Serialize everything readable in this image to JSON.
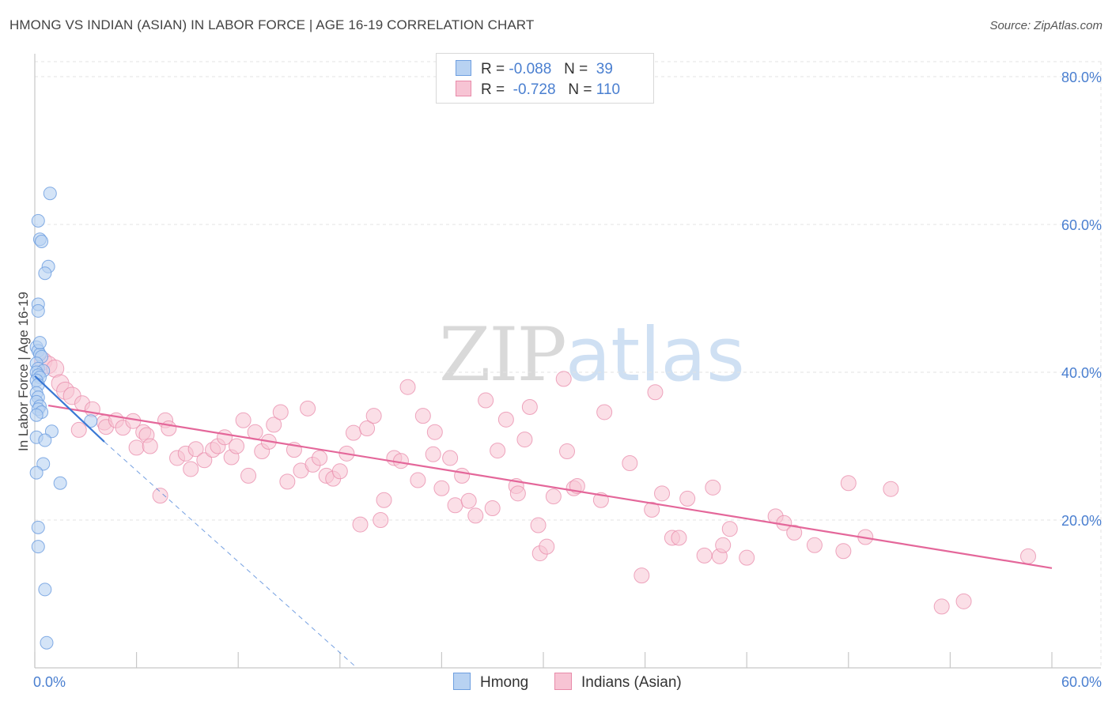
{
  "header": {
    "title": "HMONG VS INDIAN (ASIAN) IN LABOR FORCE | AGE 16-19 CORRELATION CHART",
    "source": "Source: ZipAtlas.com"
  },
  "watermark": {
    "zip": "ZIP",
    "atlas": "atlas"
  },
  "legend": {
    "hmong": {
      "r_label": "R =",
      "r_value": "-0.088",
      "n_label": "N =",
      "n_value": "39"
    },
    "indian": {
      "r_label": "R =",
      "r_value": "-0.728",
      "n_label": "N =",
      "n_value": "110"
    }
  },
  "colors": {
    "hmong_fill": "#b8d2f2",
    "hmong_stroke": "#6e9fe0",
    "hmong_line": "#3a78d4",
    "indian_fill": "#f7c4d4",
    "indian_stroke": "#e88aa9",
    "indian_line": "#e4679a",
    "axis_text": "#4a7fd0",
    "grid": "#e3e3e3"
  },
  "chart_data": {
    "type": "scatter",
    "title": "HMONG VS INDIAN (ASIAN) IN LABOR FORCE | AGE 16-19 CORRELATION CHART",
    "xlabel": "",
    "ylabel": "In Labor Force | Age 16-19",
    "xlim": [
      0,
      60
    ],
    "ylim": [
      0,
      80
    ],
    "x_tick_labels": [
      "0.0%",
      "60.0%"
    ],
    "y_ticks": [
      20,
      40,
      60,
      80
    ],
    "y_tick_labels": [
      "20.0%",
      "40.0%",
      "60.0%",
      "80.0%"
    ],
    "grid": true,
    "series": [
      {
        "name": "Hmong",
        "r": -0.088,
        "n": 39,
        "points": [
          [
            0.9,
            64.2
          ],
          [
            0.2,
            60.5
          ],
          [
            0.3,
            58.0
          ],
          [
            0.4,
            57.7
          ],
          [
            0.8,
            54.3
          ],
          [
            0.6,
            53.4
          ],
          [
            0.2,
            49.2
          ],
          [
            0.2,
            48.3
          ],
          [
            0.1,
            43.4
          ],
          [
            0.2,
            42.9
          ],
          [
            0.3,
            42.4
          ],
          [
            0.4,
            42.1
          ],
          [
            0.1,
            41.2
          ],
          [
            0.2,
            40.5
          ],
          [
            0.5,
            40.2
          ],
          [
            0.1,
            40.0
          ],
          [
            0.2,
            39.6
          ],
          [
            0.3,
            39.3
          ],
          [
            0.1,
            38.9
          ],
          [
            0.2,
            38.3
          ],
          [
            0.1,
            37.2
          ],
          [
            0.2,
            36.6
          ],
          [
            0.1,
            36.0
          ],
          [
            0.3,
            35.4
          ],
          [
            0.2,
            35.0
          ],
          [
            0.4,
            34.6
          ],
          [
            0.1,
            34.2
          ],
          [
            3.3,
            33.4
          ],
          [
            1.0,
            32.0
          ],
          [
            0.1,
            31.2
          ],
          [
            0.6,
            30.8
          ],
          [
            0.5,
            27.6
          ],
          [
            0.1,
            26.4
          ],
          [
            1.5,
            25.0
          ],
          [
            0.2,
            19.0
          ],
          [
            0.2,
            16.4
          ],
          [
            0.6,
            10.6
          ],
          [
            0.7,
            3.4
          ],
          [
            0.3,
            44.0
          ]
        ],
        "trend": {
          "x": [
            0,
            4.1
          ],
          "y": [
            39.5,
            30.6
          ]
        },
        "trend_extended": {
          "x": [
            4.1,
            19.0
          ],
          "y": [
            30.6,
            0
          ]
        }
      },
      {
        "name": "Indians (Asian)",
        "r": -0.728,
        "n": 110,
        "points": [
          [
            0.5,
            41.5
          ],
          [
            0.8,
            41.0
          ],
          [
            1.2,
            40.5
          ],
          [
            1.5,
            38.5
          ],
          [
            1.8,
            37.5
          ],
          [
            2.2,
            36.8
          ],
          [
            2.8,
            35.8
          ],
          [
            3.4,
            35.0
          ],
          [
            4.1,
            33.2
          ],
          [
            2.6,
            32.2
          ],
          [
            4.2,
            32.6
          ],
          [
            4.8,
            33.5
          ],
          [
            5.2,
            32.5
          ],
          [
            5.8,
            33.4
          ],
          [
            6.4,
            31.9
          ],
          [
            6.6,
            31.5
          ],
          [
            6.0,
            29.8
          ],
          [
            6.8,
            30.0
          ],
          [
            7.4,
            23.3
          ],
          [
            7.7,
            33.5
          ],
          [
            7.9,
            32.4
          ],
          [
            8.4,
            28.4
          ],
          [
            8.9,
            29.0
          ],
          [
            9.2,
            26.9
          ],
          [
            9.5,
            29.6
          ],
          [
            10.0,
            28.1
          ],
          [
            10.5,
            29.5
          ],
          [
            10.8,
            30.0
          ],
          [
            11.2,
            31.2
          ],
          [
            11.6,
            28.5
          ],
          [
            11.9,
            30.0
          ],
          [
            12.3,
            33.5
          ],
          [
            12.6,
            26.0
          ],
          [
            13.0,
            31.9
          ],
          [
            13.4,
            29.3
          ],
          [
            13.8,
            30.6
          ],
          [
            14.1,
            32.9
          ],
          [
            14.5,
            34.6
          ],
          [
            14.9,
            25.2
          ],
          [
            15.3,
            29.5
          ],
          [
            15.7,
            26.7
          ],
          [
            16.1,
            35.1
          ],
          [
            16.4,
            27.5
          ],
          [
            16.8,
            28.4
          ],
          [
            17.2,
            26.0
          ],
          [
            17.6,
            25.6
          ],
          [
            18.0,
            26.6
          ],
          [
            18.4,
            29.0
          ],
          [
            18.8,
            31.8
          ],
          [
            19.2,
            19.4
          ],
          [
            19.6,
            32.4
          ],
          [
            20.0,
            34.1
          ],
          [
            20.4,
            20.0
          ],
          [
            20.6,
            22.7
          ],
          [
            21.2,
            28.4
          ],
          [
            21.6,
            28.0
          ],
          [
            22.0,
            38.0
          ],
          [
            22.6,
            25.4
          ],
          [
            22.9,
            34.1
          ],
          [
            23.5,
            28.9
          ],
          [
            23.6,
            31.9
          ],
          [
            24.0,
            24.3
          ],
          [
            24.5,
            28.4
          ],
          [
            24.8,
            22.0
          ],
          [
            25.2,
            26.0
          ],
          [
            25.6,
            22.6
          ],
          [
            26.0,
            20.6
          ],
          [
            26.6,
            36.2
          ],
          [
            27.0,
            21.6
          ],
          [
            27.3,
            29.4
          ],
          [
            27.8,
            33.6
          ],
          [
            28.4,
            24.6
          ],
          [
            28.5,
            23.6
          ],
          [
            28.9,
            30.9
          ],
          [
            29.2,
            35.3
          ],
          [
            29.7,
            19.3
          ],
          [
            29.8,
            15.5
          ],
          [
            30.2,
            16.4
          ],
          [
            30.6,
            23.2
          ],
          [
            31.2,
            39.1
          ],
          [
            31.4,
            29.3
          ],
          [
            31.8,
            24.3
          ],
          [
            32.0,
            24.6
          ],
          [
            33.4,
            22.7
          ],
          [
            33.6,
            34.6
          ],
          [
            35.1,
            27.7
          ],
          [
            35.8,
            12.5
          ],
          [
            36.4,
            21.4
          ],
          [
            36.6,
            37.3
          ],
          [
            37.0,
            23.6
          ],
          [
            37.6,
            17.6
          ],
          [
            38.0,
            17.6
          ],
          [
            38.5,
            22.9
          ],
          [
            39.5,
            15.2
          ],
          [
            40.0,
            24.4
          ],
          [
            40.4,
            15.1
          ],
          [
            40.6,
            16.6
          ],
          [
            41.0,
            18.8
          ],
          [
            42.0,
            14.9
          ],
          [
            43.7,
            20.5
          ],
          [
            44.2,
            19.6
          ],
          [
            44.8,
            18.3
          ],
          [
            46.0,
            16.6
          ],
          [
            48.0,
            25.0
          ],
          [
            47.7,
            15.8
          ],
          [
            49.0,
            17.7
          ],
          [
            50.5,
            24.2
          ],
          [
            53.5,
            8.3
          ],
          [
            54.8,
            9.0
          ],
          [
            58.6,
            15.1
          ]
        ],
        "trend": {
          "x": [
            0.8,
            60.0
          ],
          "y": [
            35.5,
            13.5
          ]
        }
      }
    ]
  },
  "bottom_legend": {
    "hmong": "Hmong",
    "indian": "Indians (Asian)"
  }
}
